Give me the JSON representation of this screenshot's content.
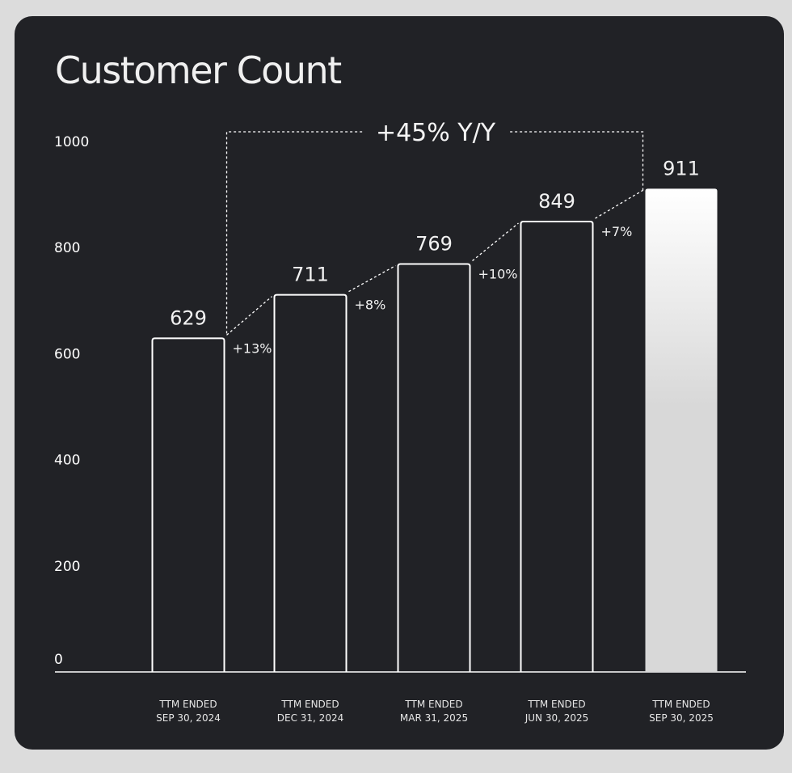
{
  "title": "Customer Count",
  "yoy_label": "+45% Y/Y",
  "colors": {
    "background": "#212226",
    "bar_outline": "#ffffff",
    "highlight_top": "#ffffff",
    "highlight_bottom": "#d8d8d8"
  },
  "chart_data": {
    "type": "bar",
    "categories": [
      [
        "TTM ENDED",
        "SEP 30, 2024"
      ],
      [
        "TTM ENDED",
        "DEC 31, 2024"
      ],
      [
        "TTM ENDED",
        "MAR 31, 2025"
      ],
      [
        "TTM ENDED",
        "JUN 30, 2025"
      ],
      [
        "TTM ENDED",
        "SEP 30, 2025"
      ]
    ],
    "values": [
      629,
      711,
      769,
      849,
      911
    ],
    "value_labels": [
      "629",
      "711",
      "769",
      "849",
      "911"
    ],
    "growth_labels": [
      "+13%",
      "+8%",
      "+10%",
      "+7%"
    ],
    "highlighted_index": 4,
    "ylim": [
      0,
      1000
    ],
    "yticks": [
      0,
      200,
      400,
      600,
      800,
      1000
    ],
    "title": "Customer Count",
    "xlabel": "",
    "ylabel": "",
    "grid": false,
    "legend": "none"
  }
}
